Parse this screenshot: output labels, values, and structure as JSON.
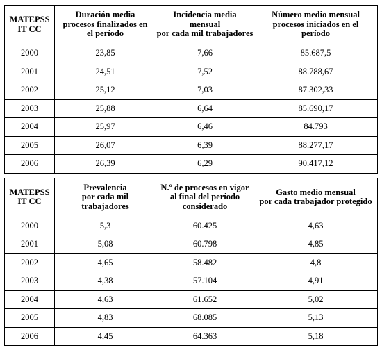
{
  "table1": {
    "corner": [
      "MATEPSS",
      "IT CC"
    ],
    "columns": [
      {
        "bold": "Duración media",
        "sub": [
          "procesos finalizados en",
          "el período"
        ]
      },
      {
        "bold": [
          "Incidencia media",
          "mensual"
        ],
        "sub": [
          "por cada mil trabajadores"
        ]
      },
      {
        "bold": "Número medio mensual",
        "sub": [
          "procesos iniciados en el",
          "período"
        ]
      }
    ],
    "rows": [
      {
        "year": "2000",
        "a": "23,85",
        "b": "7,66",
        "c": "85.687,5"
      },
      {
        "year": "2001",
        "a": "24,51",
        "b": "7,52",
        "c": "88.788,67"
      },
      {
        "year": "2002",
        "a": "25,12",
        "b": "7,03",
        "c": "87.302,33"
      },
      {
        "year": "2003",
        "a": "25,88",
        "b": "6,64",
        "c": "85.690,17"
      },
      {
        "year": "2004",
        "a": "25,97",
        "b": "6,46",
        "c": "84.793"
      },
      {
        "year": "2005",
        "a": "26,07",
        "b": "6,39",
        "c": "88.277,17"
      },
      {
        "year": "2006",
        "a": "26,39",
        "b": "6,29",
        "c": "90.417,12"
      }
    ]
  },
  "table2": {
    "corner": [
      "MATEPSS",
      "IT CC"
    ],
    "columns": [
      {
        "bold": "Prevalencia",
        "sub": [
          "por cada mil",
          "trabajadores"
        ]
      },
      {
        "bold": "N.º de procesos en vigor",
        "sub": [
          "al final del período",
          "considerado"
        ]
      },
      {
        "bold": "Gasto medio mensual",
        "sub": [
          "por cada trabajador protegido"
        ]
      }
    ],
    "rows": [
      {
        "year": "2000",
        "a": "5,3",
        "b": "60.425",
        "c": "4,63"
      },
      {
        "year": "2001",
        "a": "5,08",
        "b": "60.798",
        "c": "4,85"
      },
      {
        "year": "2002",
        "a": "4,65",
        "b": "58.482",
        "c": "4,8"
      },
      {
        "year": "2003",
        "a": "4,38",
        "b": "57.104",
        "c": "4,91"
      },
      {
        "year": "2004",
        "a": "4,63",
        "b": "61.652",
        "c": "5,02"
      },
      {
        "year": "2005",
        "a": "4,83",
        "b": "68.085",
        "c": "5,13"
      },
      {
        "year": "2006",
        "a": "4,45",
        "b": "64.363",
        "c": "5,18"
      }
    ]
  }
}
